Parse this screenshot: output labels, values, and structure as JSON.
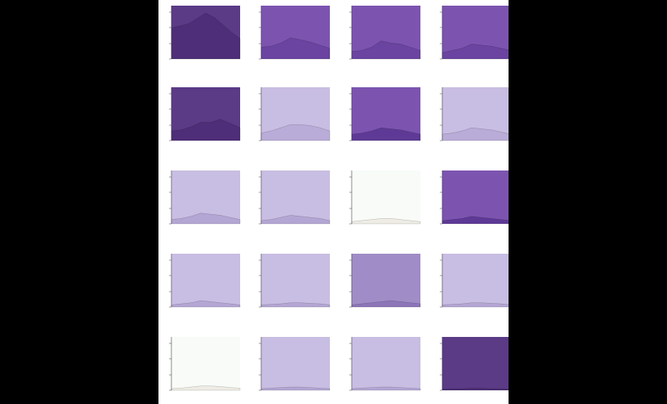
{
  "chart_data": [
    {
      "type": "area",
      "title": "",
      "x_labels": [
        "",
        "",
        ""
      ],
      "y_ticks": [
        "",
        "",
        ""
      ],
      "bg": "#5b3a86",
      "fill": "#4e2e78",
      "values": [
        0.58,
        0.62,
        0.66,
        0.76,
        0.86,
        0.78,
        0.64,
        0.5,
        0.38
      ]
    },
    {
      "type": "area",
      "title": "",
      "x_labels": [
        "",
        ""
      ],
      "y_ticks": [
        "",
        "",
        ""
      ],
      "bg": "#7c54b0",
      "fill": "#6a44a0",
      "values": [
        0.22,
        0.24,
        0.3,
        0.4,
        0.36,
        0.32,
        0.26,
        0.2
      ]
    },
    {
      "type": "area",
      "title": "",
      "x_labels": [
        "",
        ""
      ],
      "y_ticks": [
        "",
        "",
        ""
      ],
      "bg": "#7c54b0",
      "fill": "#6a44a0",
      "values": [
        0.14,
        0.16,
        0.22,
        0.34,
        0.3,
        0.28,
        0.22,
        0.16
      ]
    },
    {
      "type": "area",
      "title": "",
      "x_labels": [
        "",
        ""
      ],
      "y_ticks": [
        "",
        "",
        ""
      ],
      "bg": "#7c54b0",
      "fill": "#6a44a0",
      "values": [
        0.12,
        0.16,
        0.2,
        0.28,
        0.26,
        0.24,
        0.2,
        0.16
      ]
    },
    {
      "type": "area",
      "title": "",
      "x_labels": [
        "",
        ""
      ],
      "y_ticks": [
        "",
        "",
        ""
      ],
      "bg": "#5b3a86",
      "fill": "#4e2e78",
      "values": [
        0.18,
        0.2,
        0.26,
        0.34,
        0.34,
        0.4,
        0.32,
        0.24
      ]
    },
    {
      "type": "area",
      "title": "",
      "x_labels": [
        "",
        ""
      ],
      "y_ticks": [
        "",
        "",
        ""
      ],
      "bg": "#c8bde2",
      "fill": "#b9acd8",
      "values": [
        0.14,
        0.18,
        0.24,
        0.3,
        0.3,
        0.28,
        0.24,
        0.18
      ]
    },
    {
      "type": "area",
      "title": "",
      "x_labels": [
        "",
        ""
      ],
      "y_ticks": [
        "",
        "",
        ""
      ],
      "bg": "#7c54b0",
      "fill": "#5e3a96",
      "values": [
        0.12,
        0.14,
        0.18,
        0.24,
        0.22,
        0.2,
        0.16,
        0.12
      ]
    },
    {
      "type": "area",
      "title": "",
      "x_labels": [
        "",
        ""
      ],
      "y_ticks": [
        "",
        "",
        ""
      ],
      "bg": "#c8bde2",
      "fill": "#b9acd8",
      "values": [
        0.12,
        0.14,
        0.18,
        0.24,
        0.22,
        0.2,
        0.16,
        0.12
      ]
    },
    {
      "type": "area",
      "title": "",
      "x_labels": [
        "",
        ""
      ],
      "y_ticks": [
        "",
        "",
        ""
      ],
      "bg": "#c8bde2",
      "fill": "#b4a6d4",
      "values": [
        0.08,
        0.1,
        0.14,
        0.2,
        0.18,
        0.16,
        0.12,
        0.08
      ]
    },
    {
      "type": "area",
      "title": "",
      "x_labels": [
        "",
        ""
      ],
      "y_ticks": [
        "",
        "",
        ""
      ],
      "bg": "#c8bde2",
      "fill": "#b4a6d4",
      "values": [
        0.06,
        0.08,
        0.12,
        0.16,
        0.14,
        0.12,
        0.1,
        0.06
      ]
    },
    {
      "type": "area",
      "title": "",
      "x_labels": [
        "",
        ""
      ],
      "y_ticks": [
        "",
        "",
        ""
      ],
      "bg": "#f8fbf8",
      "fill": "#eeece4",
      "values": [
        0.04,
        0.06,
        0.08,
        0.1,
        0.1,
        0.08,
        0.06,
        0.04
      ]
    },
    {
      "type": "area",
      "title": "",
      "x_labels": [
        "",
        ""
      ],
      "y_ticks": [
        "",
        "",
        ""
      ],
      "bg": "#7c54b0",
      "fill": "#5e3a96",
      "values": [
        0.06,
        0.08,
        0.1,
        0.14,
        0.12,
        0.1,
        0.08,
        0.06
      ]
    },
    {
      "type": "area",
      "title": "",
      "x_labels": [
        "",
        ""
      ],
      "y_ticks": [
        "",
        "",
        ""
      ],
      "bg": "#c8bde2",
      "fill": "#b4a6d4",
      "values": [
        0.04,
        0.06,
        0.08,
        0.12,
        0.1,
        0.08,
        0.06,
        0.04
      ]
    },
    {
      "type": "area",
      "title": "",
      "x_labels": [
        "",
        ""
      ],
      "y_ticks": [
        "",
        "",
        ""
      ],
      "bg": "#c8bde2",
      "fill": "#b4a6d4",
      "values": [
        0.04,
        0.05,
        0.06,
        0.08,
        0.08,
        0.07,
        0.06,
        0.04
      ]
    },
    {
      "type": "area",
      "title": "",
      "x_labels": [
        "",
        ""
      ],
      "y_ticks": [
        "",
        "",
        ""
      ],
      "bg": "#a08cc6",
      "fill": "#8c76b8",
      "values": [
        0.04,
        0.06,
        0.08,
        0.1,
        0.12,
        0.1,
        0.08,
        0.06
      ]
    },
    {
      "type": "area",
      "title": "",
      "x_labels": [
        "",
        ""
      ],
      "y_ticks": [
        "",
        "",
        ""
      ],
      "bg": "#c8bde2",
      "fill": "#b4a6d4",
      "values": [
        0.04,
        0.05,
        0.06,
        0.08,
        0.08,
        0.07,
        0.06,
        0.04
      ]
    },
    {
      "type": "area",
      "title": "",
      "x_labels": [
        "",
        ""
      ],
      "y_ticks": [
        "",
        "",
        ""
      ],
      "bg": "#f8fbf8",
      "fill": "#eeece4",
      "values": [
        0.03,
        0.04,
        0.06,
        0.08,
        0.08,
        0.07,
        0.05,
        0.04
      ]
    },
    {
      "type": "area",
      "title": "",
      "x_labels": [
        "",
        ""
      ],
      "y_ticks": [
        "",
        "",
        ""
      ],
      "bg": "#c8bde2",
      "fill": "#b4a6d4",
      "values": [
        0.03,
        0.04,
        0.05,
        0.06,
        0.06,
        0.05,
        0.04,
        0.03
      ]
    },
    {
      "type": "area",
      "title": "",
      "x_labels": [
        "",
        ""
      ],
      "y_ticks": [
        "",
        "",
        ""
      ],
      "bg": "#c8bde2",
      "fill": "#b4a6d4",
      "values": [
        0.03,
        0.04,
        0.05,
        0.06,
        0.06,
        0.05,
        0.04,
        0.03
      ]
    },
    {
      "type": "area",
      "title": "",
      "x_labels": [
        "",
        ""
      ],
      "y_ticks": [
        "",
        "",
        ""
      ],
      "bg": "#5b3a86",
      "fill": "#4e2e78",
      "values": [
        0.02,
        0.03,
        0.03,
        0.04,
        0.04,
        0.03,
        0.03,
        0.02
      ]
    }
  ]
}
